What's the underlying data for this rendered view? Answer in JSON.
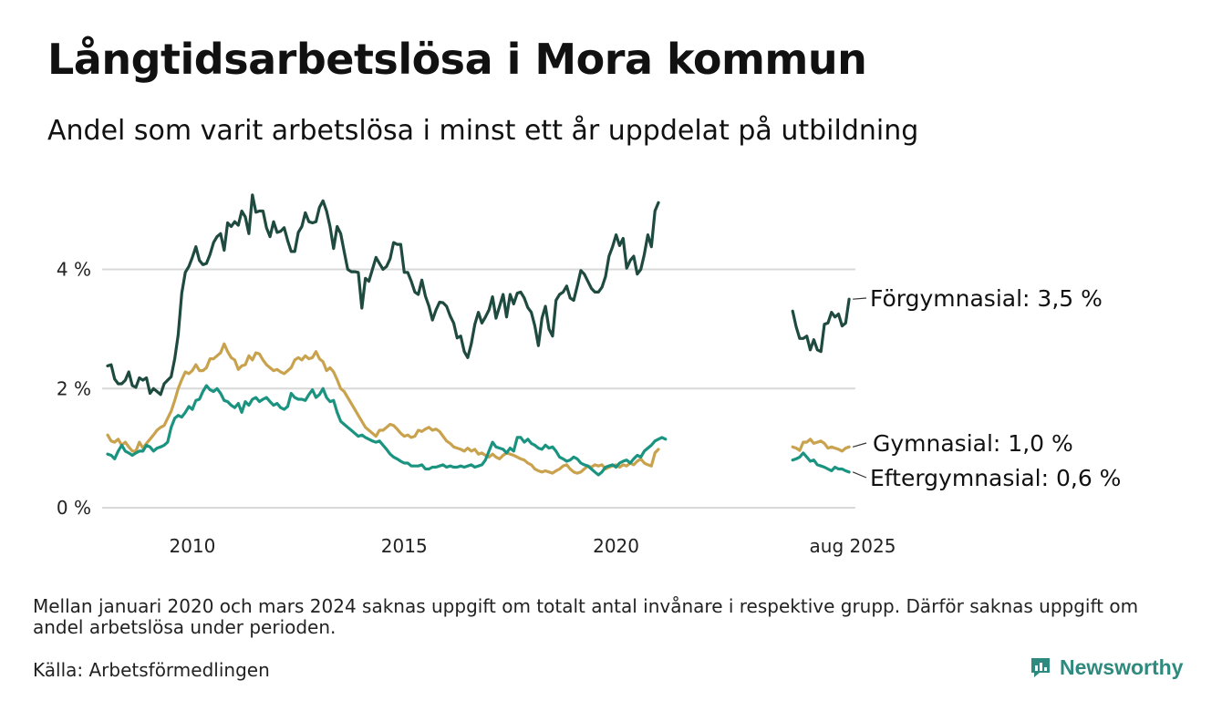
{
  "title": "Långtidsarbetslösa i Mora kommun",
  "subtitle": "Andel som varit arbetslösa i minst ett år uppdelat på utbildning",
  "note": "Mellan januari 2020 och mars 2024 saknas uppgift om totalt antal invånare i respektive grupp. Därför saknas uppgift om andel arbetslösa under perioden.",
  "source": "Källa: Arbetsförmedlingen",
  "logo_text": "Newsworthy",
  "colors": {
    "forgymnasial": "#1e4a40",
    "gymnasial": "#c9a24e",
    "eftergymnasial": "#1a9480",
    "grid": "#d9d9d9",
    "logo": "#2e8a7e"
  },
  "chart_data": {
    "type": "line",
    "title": "Långtidsarbetslösa i Mora kommun",
    "subtitle": "Andel som varit arbetslösa i minst ett år uppdelat på utbildning",
    "x_unit": "month",
    "x_range": [
      "2008-01",
      "2025-08"
    ],
    "y_range": [
      0,
      5.4
    ],
    "y_ticks": [
      0,
      2,
      4
    ],
    "y_tick_labels": [
      "0 %",
      "2 %",
      "4 %"
    ],
    "x_ticks": [
      "2010-01",
      "2015-01",
      "2020-01",
      "2025-08"
    ],
    "x_tick_labels": [
      "2010",
      "2015",
      "2020",
      "aug 2025"
    ],
    "grid": "horizontal",
    "series": [
      {
        "name": "Förgymnasial",
        "label": "Förgymnasial: 3,5 %",
        "color": "#1e4a40",
        "segments": [
          {
            "start": "2008-01",
            "values": [
              2.38,
              2.4,
              2.16,
              2.08,
              2.08,
              2.14,
              2.28,
              2.05,
              2.02,
              2.18,
              2.14,
              2.18,
              1.92,
              2.0,
              1.95,
              1.9,
              2.08,
              2.14,
              2.2,
              2.5,
              2.9,
              3.6,
              3.95,
              4.05,
              4.2,
              4.38,
              4.15,
              4.08,
              4.1,
              4.25,
              4.45,
              4.55,
              4.6,
              4.32,
              4.78,
              4.72,
              4.8,
              4.74,
              4.98,
              4.88,
              4.6,
              5.25,
              4.96,
              4.98,
              4.98,
              4.7,
              4.55,
              4.8,
              4.62,
              4.64,
              4.7,
              4.48,
              4.3,
              4.3,
              4.62,
              4.72,
              4.95,
              4.8,
              4.78,
              4.8,
              5.04,
              5.15,
              4.98,
              4.72,
              4.35,
              4.72,
              4.6,
              4.3,
              4.0,
              3.96,
              3.96,
              3.95,
              3.35,
              3.85,
              3.8,
              4.0,
              4.2,
              4.1,
              4.0,
              4.05,
              4.18,
              4.45,
              4.42,
              4.42,
              3.95,
              3.95,
              3.8,
              3.62,
              3.58,
              3.82,
              3.55,
              3.38,
              3.15,
              3.32,
              3.45,
              3.44,
              3.38,
              3.22,
              3.1,
              2.85,
              2.88,
              2.62,
              2.52,
              2.75,
              3.08,
              3.28,
              3.1,
              3.2,
              3.32,
              3.54,
              3.18,
              3.38,
              3.58,
              3.2,
              3.58,
              3.42,
              3.6,
              3.62,
              3.52,
              3.36,
              3.28,
              3.05,
              2.72,
              3.18,
              3.38,
              3.0,
              2.88,
              3.48,
              3.58,
              3.62,
              3.72,
              3.52,
              3.48,
              3.72,
              3.98,
              3.92,
              3.8,
              3.68,
              3.62,
              3.62,
              3.7,
              3.88,
              4.22,
              4.38,
              4.58,
              4.4,
              4.52,
              4.02,
              4.15,
              4.22,
              3.92,
              4.0,
              4.25,
              4.58,
              4.38,
              4.98,
              5.12
            ]
          },
          {
            "start": "2024-03",
            "values": [
              3.3,
              3.04,
              2.84,
              2.84,
              2.88,
              2.65,
              2.82,
              2.65,
              2.62,
              3.08,
              3.1,
              3.28,
              3.2,
              3.25,
              3.05,
              3.1,
              3.5
            ]
          }
        ]
      },
      {
        "name": "Gymnasial",
        "label": "Gymnasial: 1,0 %",
        "color": "#c9a24e",
        "segments": [
          {
            "start": "2008-01",
            "values": [
              1.22,
              1.12,
              1.1,
              1.15,
              1.05,
              1.1,
              1.02,
              0.95,
              0.95,
              1.1,
              1.0,
              1.08,
              1.15,
              1.22,
              1.3,
              1.35,
              1.38,
              1.5,
              1.62,
              1.8,
              2.0,
              2.15,
              2.28,
              2.25,
              2.3,
              2.4,
              2.3,
              2.3,
              2.35,
              2.5,
              2.5,
              2.55,
              2.6,
              2.75,
              2.62,
              2.52,
              2.48,
              2.32,
              2.38,
              2.4,
              2.55,
              2.48,
              2.6,
              2.58,
              2.48,
              2.4,
              2.35,
              2.3,
              2.32,
              2.28,
              2.25,
              2.3,
              2.35,
              2.48,
              2.52,
              2.48,
              2.55,
              2.5,
              2.52,
              2.62,
              2.5,
              2.45,
              2.3,
              2.35,
              2.28,
              2.15,
              2.0,
              1.95,
              1.85,
              1.75,
              1.65,
              1.55,
              1.45,
              1.35,
              1.3,
              1.25,
              1.2,
              1.3,
              1.3,
              1.35,
              1.4,
              1.38,
              1.32,
              1.25,
              1.2,
              1.22,
              1.18,
              1.2,
              1.3,
              1.28,
              1.32,
              1.35,
              1.3,
              1.32,
              1.28,
              1.2,
              1.12,
              1.08,
              1.02,
              1.0,
              0.98,
              0.95,
              1.0,
              0.95,
              0.98,
              0.9,
              0.92,
              0.88,
              0.85,
              0.9,
              0.85,
              0.82,
              0.88,
              0.92,
              0.9,
              0.88,
              0.85,
              0.82,
              0.8,
              0.75,
              0.72,
              0.65,
              0.62,
              0.6,
              0.62,
              0.6,
              0.58,
              0.62,
              0.65,
              0.7,
              0.72,
              0.65,
              0.6,
              0.58,
              0.6,
              0.65,
              0.7,
              0.68,
              0.72,
              0.7,
              0.72,
              0.65,
              0.68,
              0.7,
              0.72,
              0.68,
              0.72,
              0.7,
              0.75,
              0.72,
              0.78,
              0.82,
              0.75,
              0.72,
              0.7,
              0.92,
              0.98
            ]
          },
          {
            "start": "2024-03",
            "values": [
              1.02,
              1.0,
              0.96,
              1.1,
              1.1,
              1.15,
              1.08,
              1.1,
              1.12,
              1.08,
              1.0,
              1.02,
              1.0,
              0.98,
              0.95,
              1.0,
              1.02
            ]
          }
        ]
      },
      {
        "name": "Eftergymnasial",
        "label": "Eftergymnasial: 0,6 %",
        "color": "#1a9480",
        "segments": [
          {
            "start": "2008-01",
            "values": [
              0.9,
              0.88,
              0.82,
              0.95,
              1.05,
              0.95,
              0.92,
              0.88,
              0.92,
              0.95,
              0.95,
              1.05,
              1.02,
              0.95,
              1.0,
              1.02,
              1.05,
              1.1,
              1.35,
              1.5,
              1.55,
              1.52,
              1.6,
              1.7,
              1.65,
              1.8,
              1.82,
              1.95,
              2.05,
              1.98,
              1.95,
              2.0,
              1.92,
              1.8,
              1.78,
              1.72,
              1.68,
              1.75,
              1.6,
              1.78,
              1.72,
              1.82,
              1.85,
              1.78,
              1.82,
              1.85,
              1.78,
              1.72,
              1.75,
              1.68,
              1.65,
              1.7,
              1.92,
              1.85,
              1.82,
              1.82,
              1.8,
              1.9,
              1.98,
              1.85,
              1.9,
              2.0,
              1.85,
              1.78,
              1.8,
              1.6,
              1.45,
              1.4,
              1.35,
              1.3,
              1.25,
              1.2,
              1.22,
              1.18,
              1.15,
              1.12,
              1.1,
              1.12,
              1.05,
              0.98,
              0.9,
              0.85,
              0.82,
              0.78,
              0.75,
              0.75,
              0.7,
              0.7,
              0.7,
              0.72,
              0.65,
              0.65,
              0.68,
              0.68,
              0.7,
              0.72,
              0.68,
              0.7,
              0.68,
              0.68,
              0.7,
              0.68,
              0.7,
              0.72,
              0.68,
              0.7,
              0.72,
              0.8,
              0.95,
              1.1,
              1.02,
              1.0,
              0.98,
              0.92,
              1.0,
              0.95,
              1.18,
              1.18,
              1.1,
              1.15,
              1.08,
              1.05,
              1.0,
              0.98,
              1.05,
              1.0,
              1.02,
              0.95,
              0.85,
              0.82,
              0.78,
              0.8,
              0.85,
              0.82,
              0.75,
              0.72,
              0.7,
              0.65,
              0.6,
              0.55,
              0.6,
              0.68,
              0.7,
              0.72,
              0.68,
              0.75,
              0.78,
              0.8,
              0.75,
              0.82,
              0.88,
              0.85,
              0.95,
              1.0,
              1.05,
              1.12,
              1.15,
              1.18,
              1.15
            ]
          },
          {
            "start": "2024-03",
            "values": [
              0.8,
              0.82,
              0.85,
              0.92,
              0.85,
              0.78,
              0.8,
              0.72,
              0.7,
              0.68,
              0.65,
              0.62,
              0.68,
              0.65,
              0.65,
              0.62,
              0.6
            ]
          }
        ]
      }
    ]
  }
}
